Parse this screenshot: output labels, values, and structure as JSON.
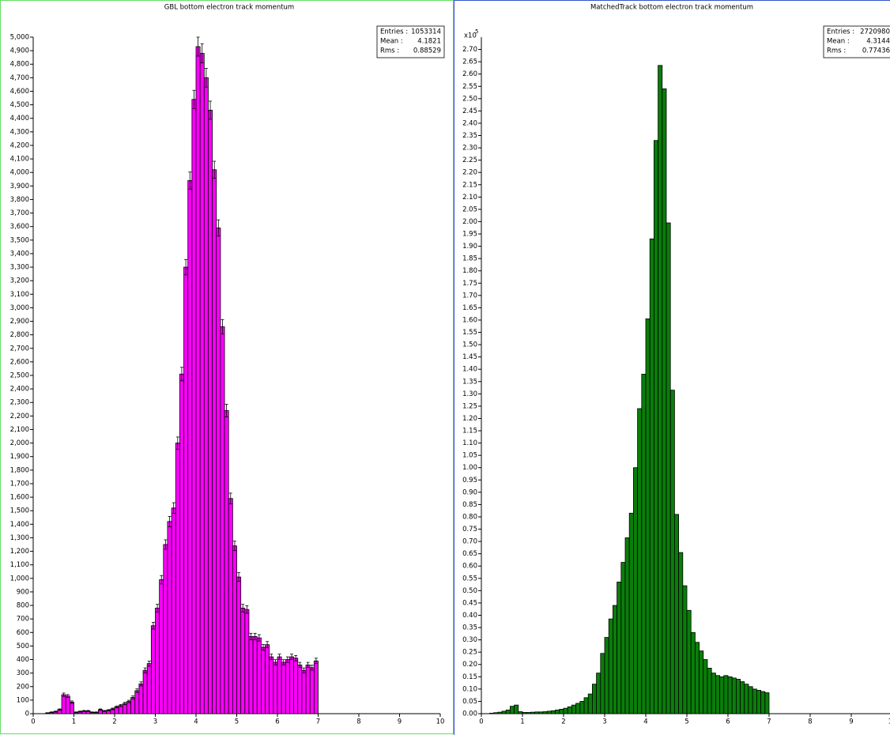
{
  "chart_data": [
    {
      "type": "histogram",
      "title": "GBL bottom electron track momentum",
      "color": "#ff00ff",
      "bins": [
        0,
        0.1,
        0.2,
        0.3,
        0.4,
        0.5,
        0.6,
        0.7,
        0.8,
        0.9,
        1,
        1.1,
        1.2,
        1.3,
        1.4,
        1.5,
        1.6,
        1.7,
        1.8,
        1.9,
        2,
        2.1,
        2.2,
        2.3,
        2.4,
        2.5,
        2.6,
        2.7,
        2.8,
        2.9,
        3,
        3.1,
        3.2,
        3.3,
        3.4,
        3.5,
        3.6,
        3.7,
        3.8,
        3.9,
        4,
        4.1,
        4.2,
        4.3,
        4.4,
        4.5,
        4.6,
        4.7,
        4.8,
        4.9,
        5,
        5.1,
        5.2,
        5.3,
        5.4,
        5.5,
        5.6,
        5.7,
        5.8,
        5.9,
        6,
        6.1,
        6.2,
        6.3,
        6.4,
        6.5,
        6.6,
        6.7,
        6.8,
        6.9,
        7
      ],
      "values": [
        0,
        0,
        0,
        5,
        10,
        15,
        30,
        140,
        130,
        85,
        10,
        15,
        20,
        20,
        10,
        10,
        30,
        20,
        25,
        35,
        50,
        60,
        75,
        90,
        120,
        170,
        220,
        320,
        370,
        650,
        780,
        990,
        1250,
        1420,
        1520,
        2000,
        2510,
        3300,
        3940,
        4540,
        4930,
        4880,
        4700,
        4460,
        4020,
        3590,
        2860,
        2240,
        1590,
        1240,
        1010,
        780,
        770,
        570,
        570,
        560,
        490,
        510,
        420,
        380,
        420,
        380,
        400,
        420,
        410,
        360,
        320,
        360,
        340,
        390
      ],
      "errors": [
        0,
        0,
        0,
        2,
        3,
        4,
        5,
        12,
        11,
        9,
        3,
        4,
        4,
        4,
        3,
        3,
        5,
        4,
        5,
        6,
        7,
        8,
        9,
        9,
        11,
        13,
        15,
        18,
        19,
        25,
        28,
        31,
        35,
        38,
        39,
        45,
        50,
        57,
        63,
        67,
        70,
        70,
        69,
        67,
        63,
        60,
        53,
        47,
        40,
        35,
        32,
        28,
        28,
        24,
        24,
        24,
        22,
        23,
        20,
        19,
        20,
        19,
        20,
        20,
        20,
        19,
        18,
        19,
        18,
        20
      ],
      "xlim": [
        0,
        10
      ],
      "xticks": [
        0,
        1,
        2,
        3,
        4,
        5,
        6,
        7,
        8,
        9,
        10
      ],
      "ylim": [
        0,
        5000
      ],
      "yticks": [
        0,
        100,
        200,
        300,
        400,
        500,
        600,
        700,
        800,
        900,
        {
          "value": 1000,
          "label": "1,000"
        },
        {
          "value": 1100,
          "label": "1,100"
        },
        {
          "value": 1200,
          "label": "1,200"
        },
        {
          "value": 1300,
          "label": "1,300"
        },
        {
          "value": 1400,
          "label": "1,400"
        },
        {
          "value": 1500,
          "label": "1,500"
        },
        {
          "value": 1600,
          "label": "1,600"
        },
        {
          "value": 1700,
          "label": "1,700"
        },
        {
          "value": 1800,
          "label": "1,800"
        },
        {
          "value": 1900,
          "label": "1,900"
        },
        {
          "value": 2000,
          "label": "2,000"
        },
        {
          "value": 2100,
          "label": "2,100"
        },
        {
          "value": 2200,
          "label": "2,200"
        },
        {
          "value": 2300,
          "label": "2,300"
        },
        {
          "value": 2400,
          "label": "2,400"
        },
        {
          "value": 2500,
          "label": "2,500"
        },
        {
          "value": 2600,
          "label": "2,600"
        },
        {
          "value": 2700,
          "label": "2,700"
        },
        {
          "value": 2800,
          "label": "2,800"
        },
        {
          "value": 2900,
          "label": "2,900"
        },
        {
          "value": 3000,
          "label": "3,000"
        },
        {
          "value": 3100,
          "label": "3,100"
        },
        {
          "value": 3200,
          "label": "3,200"
        },
        {
          "value": 3300,
          "label": "3,300"
        },
        {
          "value": 3400,
          "label": "3,400"
        },
        {
          "value": 3500,
          "label": "3,500"
        },
        {
          "value": 3600,
          "label": "3,600"
        },
        {
          "value": 3700,
          "label": "3,700"
        },
        {
          "value": 3800,
          "label": "3,800"
        },
        {
          "value": 3900,
          "label": "3,900"
        },
        {
          "value": 4000,
          "label": "4,000"
        },
        {
          "value": 4100,
          "label": "4,100"
        },
        {
          "value": 4200,
          "label": "4,200"
        },
        {
          "value": 4300,
          "label": "4,300"
        },
        {
          "value": 4400,
          "label": "4,400"
        },
        {
          "value": 4500,
          "label": "4,500"
        },
        {
          "value": 4600,
          "label": "4,600"
        },
        {
          "value": 4700,
          "label": "4,700"
        },
        {
          "value": 4800,
          "label": "4,800"
        },
        {
          "value": 4900,
          "label": "4,900"
        },
        {
          "value": 5000,
          "label": "5,000"
        }
      ],
      "stats": [
        {
          "label": "Entries :",
          "value": 1053314
        },
        {
          "label": "Mean :",
          "value": 4.1821
        },
        {
          "label": "Rms :",
          "value": 0.88529
        }
      ]
    },
    {
      "type": "histogram",
      "title": "MatchedTrack bottom electron track momentum",
      "color": "#0a7d0a",
      "y_scale_label": "x10",
      "y_scale_exponent": 5,
      "bins": [
        0,
        0.1,
        0.2,
        0.3,
        0.4,
        0.5,
        0.6,
        0.7,
        0.8,
        0.9,
        1,
        1.1,
        1.2,
        1.3,
        1.4,
        1.5,
        1.6,
        1.7,
        1.8,
        1.9,
        2,
        2.1,
        2.2,
        2.3,
        2.4,
        2.5,
        2.6,
        2.7,
        2.8,
        2.9,
        3,
        3.1,
        3.2,
        3.3,
        3.4,
        3.5,
        3.6,
        3.7,
        3.8,
        3.9,
        4,
        4.1,
        4.2,
        4.3,
        4.4,
        4.5,
        4.6,
        4.7,
        4.8,
        4.9,
        5,
        5.1,
        5.2,
        5.3,
        5.4,
        5.5,
        5.6,
        5.7,
        5.8,
        5.9,
        6,
        6.1,
        6.2,
        6.3,
        6.4,
        6.5,
        6.6,
        6.7,
        6.8,
        6.9,
        7
      ],
      "values": [
        0,
        0,
        0.002,
        0.004,
        0.006,
        0.01,
        0.015,
        0.03,
        0.035,
        0.008,
        0.005,
        0.005,
        0.006,
        0.007,
        0.007,
        0.008,
        0.01,
        0.012,
        0.015,
        0.018,
        0.022,
        0.028,
        0.035,
        0.042,
        0.05,
        0.065,
        0.08,
        0.12,
        0.165,
        0.245,
        0.31,
        0.385,
        0.44,
        0.535,
        0.615,
        0.715,
        0.815,
        1.0,
        1.24,
        1.38,
        1.605,
        1.93,
        2.33,
        2.635,
        2.54,
        1.995,
        1.315,
        0.81,
        0.655,
        0.52,
        0.42,
        0.33,
        0.29,
        0.255,
        0.22,
        0.185,
        0.165,
        0.155,
        0.15,
        0.155,
        0.15,
        0.145,
        0.14,
        0.13,
        0.12,
        0.11,
        0.1,
        0.095,
        0.09,
        0.085
      ],
      "xlim": [
        0,
        10
      ],
      "xticks": [
        0,
        1,
        2,
        3,
        4,
        5,
        6,
        7,
        8,
        9,
        10
      ],
      "ylim": [
        0,
        2.75
      ],
      "yticks": [
        {
          "value": 0,
          "label": "0.00"
        },
        0.05,
        {
          "value": 0.1,
          "label": "0.10"
        },
        0.15,
        {
          "value": 0.2,
          "label": "0.20"
        },
        0.25,
        {
          "value": 0.3,
          "label": "0.30"
        },
        0.35,
        {
          "value": 0.4,
          "label": "0.40"
        },
        0.45,
        {
          "value": 0.5,
          "label": "0.50"
        },
        0.55,
        {
          "value": 0.6,
          "label": "0.60"
        },
        0.65,
        {
          "value": 0.7,
          "label": "0.70"
        },
        0.75,
        {
          "value": 0.8,
          "label": "0.80"
        },
        0.85,
        {
          "value": 0.9,
          "label": "0.90"
        },
        0.95,
        {
          "value": 1,
          "label": "1.00"
        },
        1.05,
        {
          "value": 1.1,
          "label": "1.10"
        },
        1.15,
        {
          "value": 1.2,
          "label": "1.20"
        },
        1.25,
        {
          "value": 1.3,
          "label": "1.30"
        },
        1.35,
        {
          "value": 1.4,
          "label": "1.40"
        },
        1.45,
        {
          "value": 1.5,
          "label": "1.50"
        },
        1.55,
        {
          "value": 1.6,
          "label": "1.60"
        },
        1.65,
        {
          "value": 1.7,
          "label": "1.70"
        },
        1.75,
        {
          "value": 1.8,
          "label": "1.80"
        },
        1.85,
        {
          "value": 1.9,
          "label": "1.90"
        },
        1.95,
        {
          "value": 2,
          "label": "2.00"
        },
        2.05,
        {
          "value": 2.1,
          "label": "2.10"
        },
        2.15,
        {
          "value": 2.2,
          "label": "2.20"
        },
        2.25,
        {
          "value": 2.3,
          "label": "2.30"
        },
        2.35,
        {
          "value": 2.4,
          "label": "2.40"
        },
        2.45,
        {
          "value": 2.5,
          "label": "2.50"
        },
        2.55,
        {
          "value": 2.6,
          "label": "2.60"
        },
        2.65,
        {
          "value": 2.7,
          "label": "2.70"
        }
      ],
      "stats": [
        {
          "label": "Entries :",
          "value": 2720980
        },
        {
          "label": "Mean :",
          "value": 4.3144
        },
        {
          "label": "Rms :",
          "value": 0.77436
        }
      ]
    }
  ]
}
